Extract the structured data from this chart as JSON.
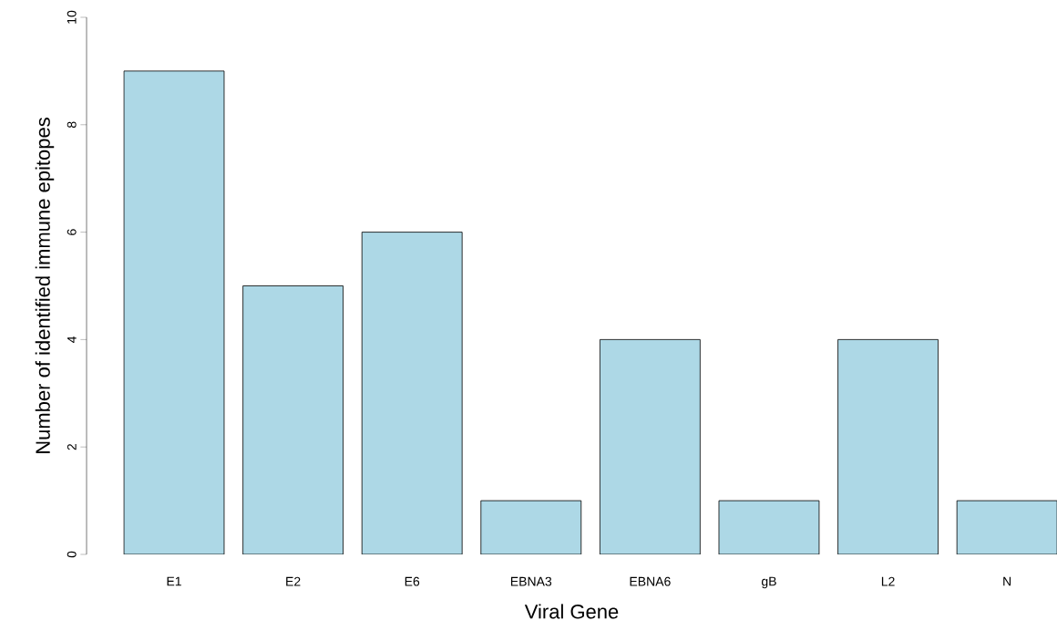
{
  "chart_data": {
    "type": "bar",
    "xlabel": "Viral Gene",
    "ylabel": "Number of identified immune epitopes",
    "categories": [
      "E1",
      "E2",
      "E6",
      "EBNA3",
      "EBNA6",
      "gB",
      "L2",
      "N"
    ],
    "values": [
      9,
      5,
      6,
      1,
      4,
      1,
      4,
      1
    ],
    "color": "#add8e6",
    "ylim": [
      0,
      10
    ],
    "yticks": [
      0,
      2,
      4,
      6,
      8,
      10
    ]
  }
}
